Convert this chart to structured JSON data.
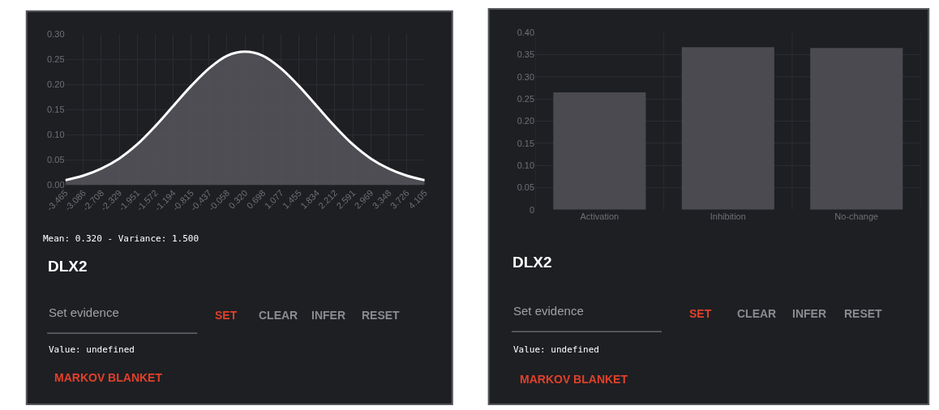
{
  "chart_data": [
    {
      "type": "area",
      "x": [
        -3.465,
        -3.086,
        -2.708,
        -2.329,
        -1.951,
        -1.572,
        -1.194,
        -0.815,
        -0.437,
        -0.058,
        0.32,
        0.698,
        1.077,
        1.455,
        1.834,
        2.212,
        2.591,
        2.969,
        3.348,
        3.726,
        4.105
      ],
      "series": [
        {
          "color": "#ffffff",
          "values": [
            0.01,
            0.019,
            0.033,
            0.053,
            0.081,
            0.117,
            0.157,
            0.197,
            0.232,
            0.257,
            0.265,
            0.257,
            0.232,
            0.197,
            0.157,
            0.117,
            0.081,
            0.053,
            0.033,
            0.019,
            0.01
          ]
        }
      ],
      "xlim": [
        -3.465,
        4.105
      ],
      "xticks": [
        {
          "value": -3.465,
          "label": "-3.465"
        },
        {
          "value": -3.086,
          "label": "-3.086"
        },
        {
          "value": -2.708,
          "label": "-2.708"
        },
        {
          "value": -2.329,
          "label": "-2.329"
        },
        {
          "value": -1.951,
          "label": "-1.951"
        },
        {
          "value": -1.572,
          "label": "-1.572"
        },
        {
          "value": -1.194,
          "label": "-1.194"
        },
        {
          "value": -0.815,
          "label": "-0.815"
        },
        {
          "value": -0.437,
          "label": "-0.437"
        },
        {
          "value": -0.058,
          "label": "-0.058"
        },
        {
          "value": 0.32,
          "label": "0.320"
        },
        {
          "value": 0.698,
          "label": "0.698"
        },
        {
          "value": 1.077,
          "label": "1.077"
        },
        {
          "value": 1.455,
          "label": "1.455"
        },
        {
          "value": 1.834,
          "label": "1.834"
        },
        {
          "value": 2.212,
          "label": "2.212"
        },
        {
          "value": 2.591,
          "label": "2.591"
        },
        {
          "value": 2.969,
          "label": "2.969"
        },
        {
          "value": 3.348,
          "label": "3.348"
        },
        {
          "value": 3.726,
          "label": "3.726"
        },
        {
          "value": 4.105,
          "label": "4.105"
        }
      ],
      "ylim": [
        0,
        0.3
      ],
      "yticks": [
        {
          "value": 0,
          "label": "0.00"
        },
        {
          "value": 0.05,
          "label": "0.05"
        },
        {
          "value": 0.1,
          "label": "0.10"
        },
        {
          "value": 0.15,
          "label": "0.15"
        },
        {
          "value": 0.2,
          "label": "0.20"
        },
        {
          "value": 0.25,
          "label": "0.25"
        },
        {
          "value": 0.3,
          "label": "0.30"
        }
      ],
      "grid": true,
      "annotations": [
        "Mean: 0.320 - Variance: 1.500",
        "DLX2",
        "Set evidence",
        "SET",
        "CLEAR",
        "INFER",
        "RESET",
        "Value: undefined",
        "MARKOV BLANKET"
      ]
    },
    {
      "type": "bar",
      "categories": [
        "Activation",
        "Inhibition",
        "No-change"
      ],
      "values": [
        0.265,
        0.367,
        0.365
      ],
      "color": "#4b4a50",
      "ylim": [
        0,
        0.4
      ],
      "yticks": [
        {
          "value": 0,
          "label": "0"
        },
        {
          "value": 0.05,
          "label": "0.05"
        },
        {
          "value": 0.1,
          "label": "0.10"
        },
        {
          "value": 0.15,
          "label": "0.15"
        },
        {
          "value": 0.2,
          "label": "0.20"
        },
        {
          "value": 0.25,
          "label": "0.25"
        },
        {
          "value": 0.3,
          "label": "0.30"
        },
        {
          "value": 0.35,
          "label": "0.35"
        },
        {
          "value": 0.4,
          "label": "0.40"
        }
      ],
      "grid": true,
      "annotations": [
        "DLX2",
        "Set evidence",
        "SET",
        "CLEAR",
        "INFER",
        "RESET",
        "Value: undefined",
        "MARKOV BLANKET"
      ]
    }
  ]
}
